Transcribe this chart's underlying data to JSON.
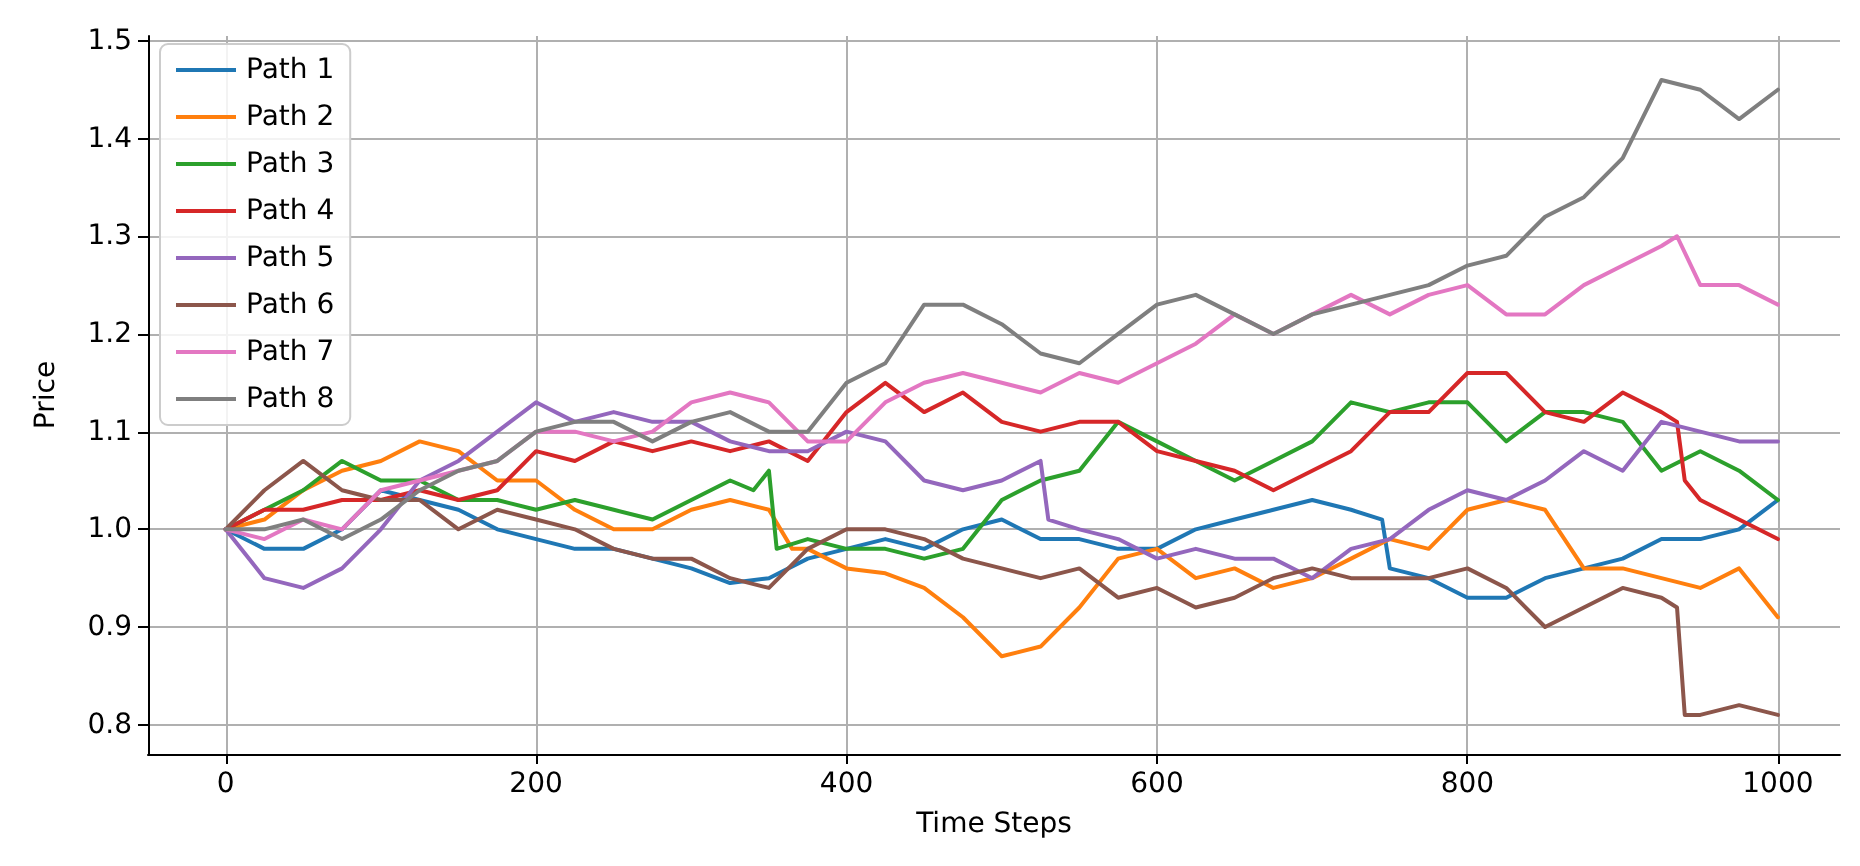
{
  "chart_data": {
    "type": "line",
    "xlabel": "Time Steps",
    "ylabel": "Price",
    "xlim": [
      -50,
      1040
    ],
    "ylim": [
      0.77,
      1.505
    ],
    "xticks": [
      0,
      200,
      400,
      600,
      800,
      1000
    ],
    "yticks": [
      0.8,
      0.9,
      {
        "value": 1,
        "label": "1.0"
      },
      1.1,
      1.2,
      1.3,
      1.4,
      1.5
    ],
    "grid": true,
    "legend": "top left",
    "marker": "none",
    "line_style": "solid",
    "series": [
      {
        "name": "Path 1",
        "color": "#1f77b4",
        "x": [
          0,
          25,
          50,
          75,
          100,
          125,
          150,
          175,
          200,
          225,
          250,
          275,
          300,
          325,
          350,
          375,
          400,
          425,
          450,
          475,
          500,
          525,
          550,
          575,
          600,
          625,
          650,
          675,
          700,
          725,
          745,
          750,
          775,
          800,
          825,
          850,
          875,
          900,
          925,
          950,
          975,
          1000
        ],
        "values": [
          1.0,
          0.98,
          0.98,
          1.0,
          1.04,
          1.03,
          1.02,
          1.0,
          0.99,
          0.98,
          0.98,
          0.97,
          0.96,
          0.945,
          0.95,
          0.97,
          0.98,
          0.99,
          0.98,
          1.0,
          1.01,
          0.99,
          0.99,
          0.98,
          0.98,
          1.0,
          1.01,
          1.02,
          1.03,
          1.02,
          1.01,
          0.96,
          0.95,
          0.93,
          0.93,
          0.95,
          0.96,
          0.97,
          0.99,
          0.99,
          1.0,
          1.03
        ]
      },
      {
        "name": "Path 2",
        "color": "#ff7f0e",
        "x": [
          0,
          25,
          50,
          75,
          100,
          125,
          150,
          175,
          200,
          225,
          250,
          275,
          300,
          325,
          350,
          365,
          375,
          400,
          425,
          450,
          475,
          500,
          525,
          550,
          575,
          600,
          625,
          650,
          675,
          700,
          725,
          750,
          775,
          800,
          825,
          850,
          875,
          900,
          925,
          950,
          975,
          1000
        ],
        "values": [
          1.0,
          1.01,
          1.04,
          1.06,
          1.07,
          1.09,
          1.08,
          1.05,
          1.05,
          1.02,
          1.0,
          1.0,
          1.02,
          1.03,
          1.02,
          0.98,
          0.98,
          0.96,
          0.955,
          0.94,
          0.91,
          0.87,
          0.88,
          0.92,
          0.97,
          0.98,
          0.95,
          0.96,
          0.94,
          0.95,
          0.97,
          0.99,
          0.98,
          1.02,
          1.03,
          1.02,
          0.96,
          0.96,
          0.95,
          0.94,
          0.96,
          0.91
        ]
      },
      {
        "name": "Path 3",
        "color": "#2ca02c",
        "x": [
          0,
          25,
          50,
          75,
          100,
          125,
          150,
          175,
          200,
          225,
          250,
          275,
          300,
          325,
          340,
          350,
          355,
          375,
          400,
          425,
          450,
          475,
          500,
          525,
          550,
          575,
          600,
          625,
          650,
          675,
          700,
          725,
          750,
          775,
          800,
          825,
          850,
          875,
          900,
          925,
          950,
          975,
          1000
        ],
        "values": [
          1.0,
          1.02,
          1.04,
          1.07,
          1.05,
          1.05,
          1.03,
          1.03,
          1.02,
          1.03,
          1.02,
          1.01,
          1.03,
          1.05,
          1.04,
          1.06,
          0.98,
          0.99,
          0.98,
          0.98,
          0.97,
          0.98,
          1.03,
          1.05,
          1.06,
          1.11,
          1.09,
          1.07,
          1.05,
          1.07,
          1.09,
          1.13,
          1.12,
          1.13,
          1.13,
          1.09,
          1.12,
          1.12,
          1.11,
          1.06,
          1.08,
          1.06,
          1.03
        ]
      },
      {
        "name": "Path 4",
        "color": "#d62728",
        "x": [
          0,
          25,
          50,
          75,
          100,
          125,
          150,
          175,
          200,
          225,
          250,
          275,
          300,
          325,
          350,
          375,
          400,
          425,
          450,
          475,
          500,
          525,
          550,
          575,
          600,
          625,
          650,
          675,
          700,
          725,
          750,
          775,
          800,
          825,
          850,
          875,
          900,
          925,
          935,
          940,
          950,
          975,
          1000
        ],
        "values": [
          1.0,
          1.02,
          1.02,
          1.03,
          1.03,
          1.04,
          1.03,
          1.04,
          1.08,
          1.07,
          1.09,
          1.08,
          1.09,
          1.08,
          1.09,
          1.07,
          1.12,
          1.15,
          1.12,
          1.14,
          1.11,
          1.1,
          1.11,
          1.11,
          1.08,
          1.07,
          1.06,
          1.04,
          1.06,
          1.08,
          1.12,
          1.12,
          1.16,
          1.16,
          1.12,
          1.11,
          1.14,
          1.12,
          1.11,
          1.05,
          1.03,
          1.01,
          0.99
        ]
      },
      {
        "name": "Path 5",
        "color": "#9467bd",
        "x": [
          0,
          25,
          50,
          75,
          100,
          125,
          150,
          175,
          200,
          225,
          250,
          275,
          300,
          325,
          350,
          375,
          400,
          425,
          450,
          475,
          500,
          525,
          530,
          550,
          575,
          600,
          625,
          650,
          675,
          700,
          725,
          750,
          775,
          800,
          825,
          850,
          875,
          900,
          925,
          950,
          975,
          1000
        ],
        "values": [
          1.0,
          0.95,
          0.94,
          0.96,
          1.0,
          1.05,
          1.07,
          1.1,
          1.13,
          1.11,
          1.12,
          1.11,
          1.11,
          1.09,
          1.08,
          1.08,
          1.1,
          1.09,
          1.05,
          1.04,
          1.05,
          1.07,
          1.01,
          1.0,
          0.99,
          0.97,
          0.98,
          0.97,
          0.97,
          0.95,
          0.98,
          0.99,
          1.02,
          1.04,
          1.03,
          1.05,
          1.08,
          1.06,
          1.11,
          1.1,
          1.09,
          1.09
        ]
      },
      {
        "name": "Path 6",
        "color": "#8c564b",
        "x": [
          0,
          25,
          50,
          75,
          100,
          125,
          150,
          175,
          200,
          225,
          250,
          275,
          300,
          325,
          350,
          375,
          400,
          425,
          450,
          475,
          500,
          525,
          550,
          575,
          600,
          625,
          650,
          675,
          700,
          725,
          750,
          775,
          800,
          825,
          850,
          875,
          900,
          925,
          935,
          940,
          950,
          975,
          1000
        ],
        "values": [
          1.0,
          1.04,
          1.07,
          1.04,
          1.03,
          1.03,
          1.0,
          1.02,
          1.01,
          1.0,
          0.98,
          0.97,
          0.97,
          0.95,
          0.94,
          0.98,
          1.0,
          1.0,
          0.99,
          0.97,
          0.96,
          0.95,
          0.96,
          0.93,
          0.94,
          0.92,
          0.93,
          0.95,
          0.96,
          0.95,
          0.95,
          0.95,
          0.96,
          0.94,
          0.9,
          0.92,
          0.94,
          0.93,
          0.92,
          0.81,
          0.81,
          0.82,
          0.81
        ]
      },
      {
        "name": "Path 7",
        "color": "#e377c2",
        "x": [
          0,
          25,
          50,
          75,
          100,
          125,
          150,
          175,
          200,
          225,
          250,
          275,
          300,
          325,
          350,
          375,
          400,
          425,
          450,
          475,
          500,
          525,
          550,
          575,
          600,
          625,
          650,
          675,
          700,
          725,
          750,
          775,
          800,
          825,
          850,
          875,
          900,
          925,
          935,
          950,
          975,
          1000
        ],
        "values": [
          1.0,
          0.99,
          1.01,
          1.0,
          1.04,
          1.05,
          1.06,
          1.07,
          1.1,
          1.1,
          1.09,
          1.1,
          1.13,
          1.14,
          1.13,
          1.09,
          1.09,
          1.13,
          1.15,
          1.16,
          1.15,
          1.14,
          1.16,
          1.15,
          1.17,
          1.19,
          1.22,
          1.2,
          1.22,
          1.24,
          1.22,
          1.24,
          1.25,
          1.22,
          1.22,
          1.25,
          1.27,
          1.29,
          1.3,
          1.25,
          1.25,
          1.23
        ]
      },
      {
        "name": "Path 8",
        "color": "#7f7f7f",
        "x": [
          0,
          25,
          50,
          75,
          100,
          125,
          150,
          175,
          200,
          225,
          250,
          275,
          300,
          325,
          350,
          375,
          400,
          425,
          450,
          475,
          500,
          525,
          550,
          575,
          600,
          625,
          650,
          675,
          700,
          725,
          750,
          775,
          800,
          825,
          850,
          875,
          900,
          925,
          950,
          975,
          1000
        ],
        "values": [
          1.0,
          1.0,
          1.01,
          0.99,
          1.01,
          1.04,
          1.06,
          1.07,
          1.1,
          1.11,
          1.11,
          1.09,
          1.11,
          1.12,
          1.1,
          1.1,
          1.15,
          1.17,
          1.23,
          1.23,
          1.21,
          1.18,
          1.17,
          1.2,
          1.23,
          1.24,
          1.22,
          1.2,
          1.22,
          1.23,
          1.24,
          1.25,
          1.27,
          1.28,
          1.32,
          1.34,
          1.38,
          1.46,
          1.45,
          1.42,
          1.45
        ]
      }
    ]
  }
}
